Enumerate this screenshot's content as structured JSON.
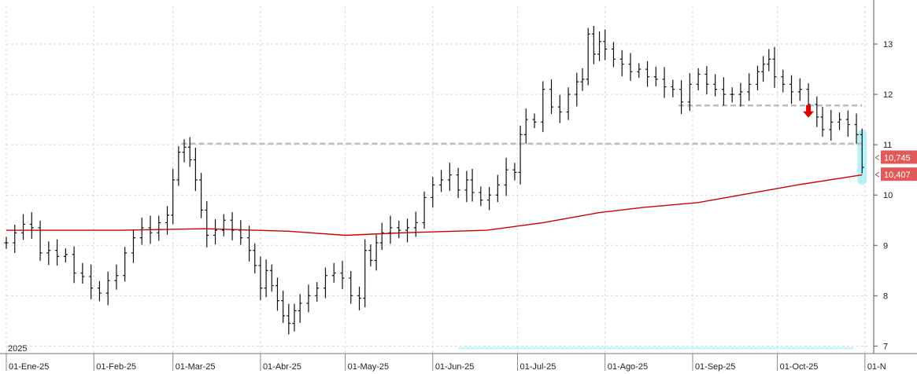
{
  "chart_data": {
    "type": "ohlc",
    "year_label": "2025",
    "x_tick_labels": [
      "01-Ene-25",
      "01-Feb-25",
      "01-Mar-25",
      "01-Abr-25",
      "01-May-25",
      "01-Jun-25",
      "01-Jul-25",
      "01-Ago-25",
      "01-Sep-25",
      "01-Oct-25",
      "01-N"
    ],
    "x_tick_days": [
      0,
      31,
      59,
      90,
      120,
      151,
      181,
      212,
      243,
      273,
      304
    ],
    "y_ticks": [
      7,
      8,
      9,
      10,
      11,
      12,
      13
    ],
    "ylim": [
      6.85,
      13.75
    ],
    "xlim_days": [
      0,
      306
    ],
    "grid": true,
    "candles_close": [
      {
        "d": 0,
        "c": 9.05
      },
      {
        "d": 3,
        "c": 9.25
      },
      {
        "d": 6,
        "c": 9.42
      },
      {
        "d": 9,
        "c": 9.35
      },
      {
        "d": 12,
        "c": 8.85
      },
      {
        "d": 15,
        "c": 8.9
      },
      {
        "d": 18,
        "c": 8.78
      },
      {
        "d": 21,
        "c": 8.82
      },
      {
        "d": 24,
        "c": 8.45
      },
      {
        "d": 27,
        "c": 8.38
      },
      {
        "d": 30,
        "c": 8.15
      },
      {
        "d": 33,
        "c": 8.05
      },
      {
        "d": 36,
        "c": 8.3
      },
      {
        "d": 39,
        "c": 8.4
      },
      {
        "d": 42,
        "c": 8.85
      },
      {
        "d": 45,
        "c": 9.15
      },
      {
        "d": 48,
        "c": 9.35
      },
      {
        "d": 51,
        "c": 9.25
      },
      {
        "d": 54,
        "c": 9.45
      },
      {
        "d": 57,
        "c": 9.6
      },
      {
        "d": 59,
        "c": 10.3
      },
      {
        "d": 61,
        "c": 10.85
      },
      {
        "d": 63,
        "c": 10.95
      },
      {
        "d": 65,
        "c": 10.7
      },
      {
        "d": 67,
        "c": 10.3
      },
      {
        "d": 69,
        "c": 9.7
      },
      {
        "d": 71,
        "c": 9.2
      },
      {
        "d": 74,
        "c": 9.3
      },
      {
        "d": 77,
        "c": 9.5
      },
      {
        "d": 80,
        "c": 9.3
      },
      {
        "d": 83,
        "c": 9.15
      },
      {
        "d": 86,
        "c": 8.9
      },
      {
        "d": 88,
        "c": 8.6
      },
      {
        "d": 90,
        "c": 8.15
      },
      {
        "d": 92,
        "c": 8.5
      },
      {
        "d": 94,
        "c": 8.2
      },
      {
        "d": 96,
        "c": 7.9
      },
      {
        "d": 98,
        "c": 7.6
      },
      {
        "d": 100,
        "c": 7.45
      },
      {
        "d": 102,
        "c": 7.7
      },
      {
        "d": 104,
        "c": 7.85
      },
      {
        "d": 107,
        "c": 8.0
      },
      {
        "d": 110,
        "c": 8.15
      },
      {
        "d": 113,
        "c": 8.4
      },
      {
        "d": 116,
        "c": 8.45
      },
      {
        "d": 119,
        "c": 8.35
      },
      {
        "d": 122,
        "c": 8.0
      },
      {
        "d": 125,
        "c": 7.95
      },
      {
        "d": 127,
        "c": 8.9
      },
      {
        "d": 129,
        "c": 8.7
      },
      {
        "d": 131,
        "c": 9.05
      },
      {
        "d": 133,
        "c": 9.25
      },
      {
        "d": 136,
        "c": 9.35
      },
      {
        "d": 139,
        "c": 9.3
      },
      {
        "d": 142,
        "c": 9.35
      },
      {
        "d": 145,
        "c": 9.45
      },
      {
        "d": 148,
        "c": 9.95
      },
      {
        "d": 151,
        "c": 10.2
      },
      {
        "d": 154,
        "c": 10.3
      },
      {
        "d": 157,
        "c": 10.4
      },
      {
        "d": 160,
        "c": 10.1
      },
      {
        "d": 163,
        "c": 10.3
      },
      {
        "d": 165,
        "c": 10.05
      },
      {
        "d": 168,
        "c": 9.9
      },
      {
        "d": 171,
        "c": 10.0
      },
      {
        "d": 174,
        "c": 10.2
      },
      {
        "d": 177,
        "c": 10.5
      },
      {
        "d": 180,
        "c": 10.45
      },
      {
        "d": 182,
        "c": 11.2
      },
      {
        "d": 184,
        "c": 11.5
      },
      {
        "d": 187,
        "c": 11.45
      },
      {
        "d": 190,
        "c": 12.1
      },
      {
        "d": 193,
        "c": 11.75
      },
      {
        "d": 196,
        "c": 11.65
      },
      {
        "d": 199,
        "c": 12.0
      },
      {
        "d": 202,
        "c": 12.25
      },
      {
        "d": 204,
        "c": 12.3
      },
      {
        "d": 206,
        "c": 13.2
      },
      {
        "d": 208,
        "c": 12.8
      },
      {
        "d": 210,
        "c": 13.05
      },
      {
        "d": 212,
        "c": 12.9
      },
      {
        "d": 215,
        "c": 12.7
      },
      {
        "d": 218,
        "c": 12.6
      },
      {
        "d": 221,
        "c": 12.45
      },
      {
        "d": 224,
        "c": 12.5
      },
      {
        "d": 227,
        "c": 12.35
      },
      {
        "d": 230,
        "c": 12.3
      },
      {
        "d": 233,
        "c": 12.15
      },
      {
        "d": 236,
        "c": 12.1
      },
      {
        "d": 239,
        "c": 11.85
      },
      {
        "d": 242,
        "c": 12.2
      },
      {
        "d": 245,
        "c": 12.4
      },
      {
        "d": 248,
        "c": 12.2
      },
      {
        "d": 251,
        "c": 12.1
      },
      {
        "d": 254,
        "c": 12.0
      },
      {
        "d": 257,
        "c": 12.0
      },
      {
        "d": 260,
        "c": 12.05
      },
      {
        "d": 263,
        "c": 12.2
      },
      {
        "d": 266,
        "c": 12.45
      },
      {
        "d": 268,
        "c": 12.6
      },
      {
        "d": 270,
        "c": 12.7
      },
      {
        "d": 272,
        "c": 12.35
      },
      {
        "d": 275,
        "c": 12.2
      },
      {
        "d": 278,
        "c": 12.05
      },
      {
        "d": 281,
        "c": 12.1
      },
      {
        "d": 284,
        "c": 11.8
      },
      {
        "d": 287,
        "c": 11.55
      },
      {
        "d": 289,
        "c": 11.3
      },
      {
        "d": 292,
        "c": 11.45
      },
      {
        "d": 295,
        "c": 11.5
      },
      {
        "d": 298,
        "c": 11.4
      },
      {
        "d": 301,
        "c": 11.2
      },
      {
        "d": 303,
        "c": 10.55
      }
    ],
    "moving_average": [
      {
        "d": 0,
        "v": 9.3
      },
      {
        "d": 40,
        "v": 9.3
      },
      {
        "d": 70,
        "v": 9.33
      },
      {
        "d": 100,
        "v": 9.28
      },
      {
        "d": 120,
        "v": 9.2
      },
      {
        "d": 140,
        "v": 9.25
      },
      {
        "d": 170,
        "v": 9.3
      },
      {
        "d": 190,
        "v": 9.45
      },
      {
        "d": 210,
        "v": 9.65
      },
      {
        "d": 225,
        "v": 9.75
      },
      {
        "d": 245,
        "v": 9.85
      },
      {
        "d": 260,
        "v": 10.0
      },
      {
        "d": 280,
        "v": 10.2
      },
      {
        "d": 303,
        "v": 10.4
      }
    ],
    "levels": [
      {
        "value": 11.02,
        "from_day": 62,
        "to_day": 303
      },
      {
        "value": 11.78,
        "from_day": 238,
        "to_day": 303
      }
    ],
    "price_tags": [
      {
        "label": "10,745",
        "value": 10.745
      },
      {
        "label": "10,407",
        "value": 10.407
      }
    ],
    "colors": {
      "ohlc": "#111111",
      "moving_average": "#cc0000",
      "level": "#bdbdbd",
      "tag": "#e05a5a",
      "arrow": "#e00000",
      "highlight": "#aaf0f8"
    }
  }
}
